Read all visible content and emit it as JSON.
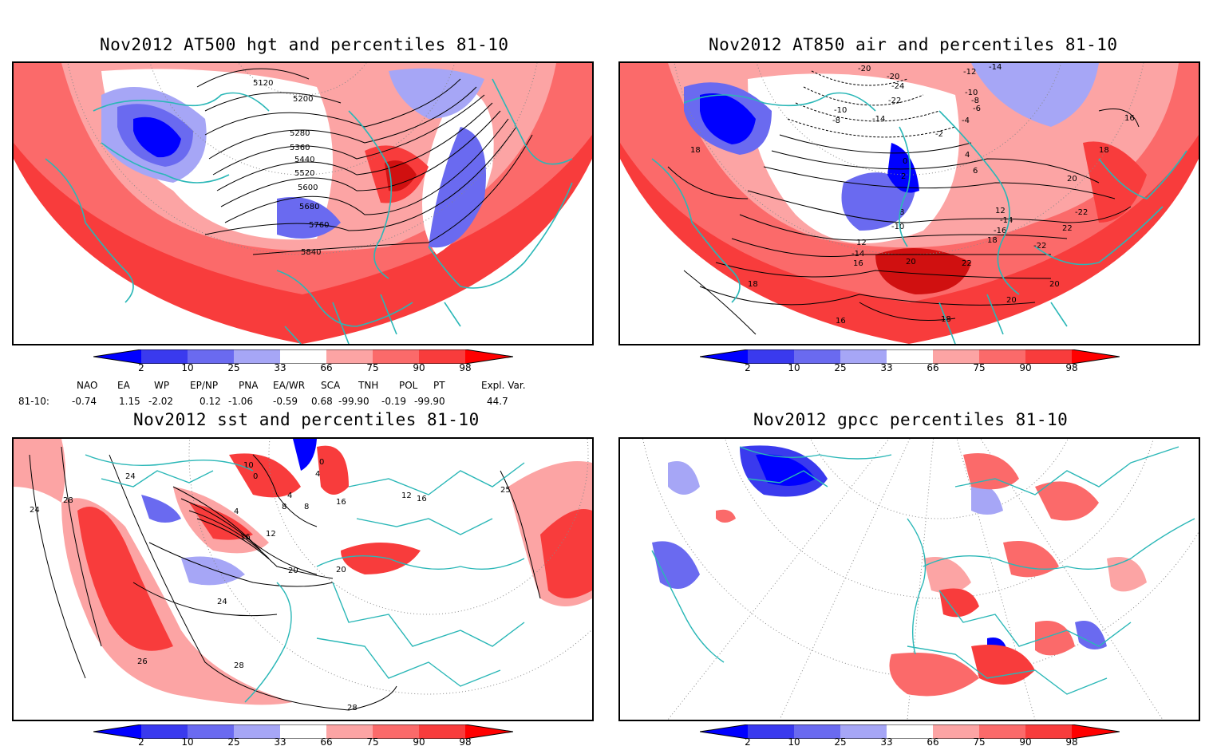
{
  "panels": {
    "hgt": {
      "title": "Nov2012 AT500 hgt and percentiles 81-10",
      "contour_labels": [
        "5120",
        "5200",
        "5280",
        "5360",
        "5440",
        "5520",
        "5600",
        "5680",
        "5760",
        "5840"
      ]
    },
    "air": {
      "title": "Nov2012 AT850 air and percentiles 81-10",
      "contour_labels": [
        "-20",
        "-12",
        "-14",
        "-20",
        "-24",
        "-10",
        "-22",
        "-8",
        "-6",
        "-4",
        "-10",
        "-8",
        "-14",
        "-2",
        "16",
        "18",
        "0",
        "4",
        "2",
        "6",
        "18",
        "20",
        "12",
        "-14",
        "-22",
        "8",
        "-16",
        "-10",
        "22",
        "12",
        "18",
        "-22",
        "-14",
        "16",
        "20",
        "22",
        "18",
        "16",
        "20",
        "20",
        "18"
      ]
    },
    "sst": {
      "title": "Nov2012 sst and percentiles 81-10",
      "contour_labels": [
        "24",
        "24",
        "28",
        "10",
        "0",
        "0",
        "4",
        "4",
        "4",
        "8",
        "8",
        "12",
        "16",
        "12",
        "16",
        "16",
        "25",
        "20",
        "20",
        "24",
        "26",
        "28",
        "28"
      ]
    },
    "gpcc": {
      "title": "Nov2012 gpcc percentiles 81-10"
    }
  },
  "colorbar": {
    "ticks": [
      "2",
      "10",
      "25",
      "33",
      "66",
      "75",
      "90",
      "98"
    ],
    "colors": {
      "blue_dark": "#0000ff",
      "blue_mid": "#3a3aee",
      "blue_light": "#6a6af0",
      "blue_pale": "#a6a6f6",
      "red_pale": "#fca4a4",
      "red_light": "#fb6a6a",
      "red_mid": "#f83c3c",
      "red_dark": "#ff0000"
    }
  },
  "indices": {
    "header": [
      "NAO",
      "EA",
      "WP",
      "EP/NP",
      "PNA",
      "EA/WR",
      "SCA",
      "TNH",
      "POL",
      "PT",
      "Expl. Var."
    ],
    "row_label": "81-10:",
    "values": [
      "-0.74",
      "1.15",
      "-2.02",
      "0.12",
      "-1.06",
      "-0.59",
      "0.68",
      "-99.90",
      "-0.19",
      "-99.90",
      "44.7"
    ]
  },
  "map_colors": {
    "coast": "#2ab7b7",
    "contour": "#000000",
    "grid": "#888888"
  }
}
